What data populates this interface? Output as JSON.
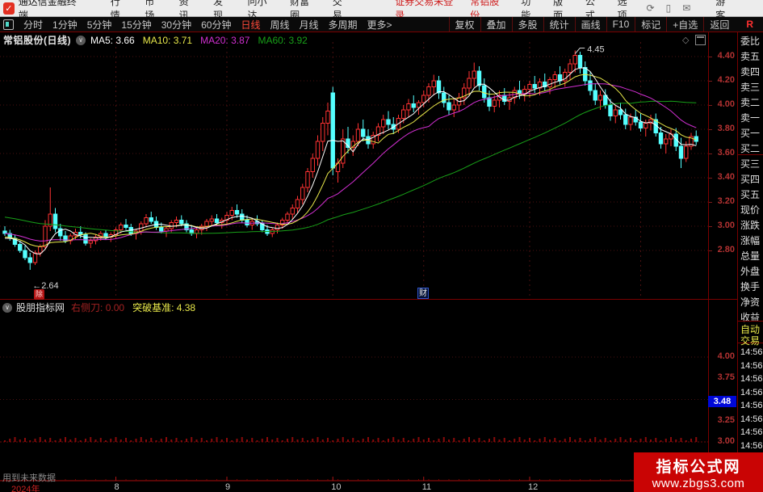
{
  "topbar": {
    "app_title": "通达信金融终端",
    "menus": [
      "行情",
      "市场",
      "资讯",
      "发现",
      "问小达",
      "财富圈",
      "交易"
    ],
    "alerts": [
      "证券交易未登录",
      "常铝股份"
    ],
    "menus_right": [
      "功能",
      "版面",
      "公式",
      "选项"
    ],
    "icons": [
      "refresh",
      "mobile",
      "mail"
    ],
    "user": "游客"
  },
  "toolbar": {
    "periods": [
      "分时",
      "1分钟",
      "5分钟",
      "15分钟",
      "30分钟",
      "60分钟",
      "日线",
      "周线",
      "月线",
      "多周期",
      "更多>"
    ],
    "active_period": "日线",
    "actions": [
      "复权",
      "叠加",
      "多股",
      "统计",
      "画线",
      "F10",
      "标记",
      "+自选",
      "返回"
    ],
    "r_flag": "R"
  },
  "chart_header": {
    "title": "常铝股份(日线)",
    "ma5": "MA5: 3.66",
    "ma10": "MA10: 3.71",
    "ma20": "MA20: 3.87",
    "ma60": "MA60: 3.92",
    "diamond": "◇"
  },
  "indicator": {
    "name": "股朋指标网",
    "field1_label": "右侧刀:",
    "field1_value": "0.00",
    "field2_label": "突破基准:",
    "field2_value": "4.38",
    "tag_value": "3.48",
    "scale": [
      "4.00",
      "3.75",
      "3.25",
      "3.00"
    ]
  },
  "main_scale": [
    "4.40",
    "4.20",
    "4.00",
    "3.80",
    "3.60",
    "3.40",
    "3.20",
    "3.00",
    "2.80"
  ],
  "right_panel": {
    "rows": [
      "委比",
      "卖五",
      "卖四",
      "卖三",
      "卖二",
      "卖一",
      "买一",
      "买二",
      "买三",
      "买四",
      "买五",
      "现价",
      "涨跌",
      "涨幅",
      "总量",
      "外盘",
      "换手",
      "净资",
      "收益"
    ],
    "auto_rows": [
      "自动",
      "交易"
    ],
    "times": [
      "14:56",
      "14:56",
      "14:56",
      "14:56",
      "14:56",
      "14:56",
      "14:56",
      "14:56"
    ]
  },
  "bottom": {
    "future_note": "用到未来数据",
    "year_label": "2024年",
    "month_labels": [
      "8",
      "9",
      "10",
      "11",
      "12"
    ]
  },
  "watermark": {
    "line1": "指标公式网",
    "line2": "www.zbgs3.com"
  },
  "annotations": {
    "low_text": "←2.64",
    "high_text": "4.45",
    "event_badge": "除",
    "report_badge": "财"
  },
  "chart_data": {
    "type": "candlestick",
    "title": "常铝股份(日线)",
    "y_axis_labels": [
      4.4,
      4.2,
      4.0,
      3.8,
      3.6,
      3.4,
      3.2,
      3.0,
      2.8
    ],
    "indicator_axis_labels": [
      4.0,
      3.75,
      3.25,
      3.0
    ],
    "indicator_current": 3.48,
    "low_annotation": {
      "index": 5,
      "value": 2.64
    },
    "high_annotation": {
      "index": 113,
      "value": 4.45
    },
    "month_start_indices": [
      22,
      44,
      65,
      83,
      104,
      126
    ],
    "axis_labels": [
      {
        "label": "2024年",
        "index": 0,
        "year": true
      },
      {
        "label": "8",
        "index": 22
      },
      {
        "label": "9",
        "index": 44
      },
      {
        "label": "10",
        "index": 65
      },
      {
        "label": "11",
        "index": 83
      },
      {
        "label": "12",
        "index": 104
      }
    ],
    "pre_close": {
      "start": 3.28,
      "end": 2.88,
      "count": 60
    },
    "colors": {
      "up": "#ff3232",
      "down": "#55ffff",
      "ma5": "#ffffff",
      "ma10": "#e8e84a",
      "ma20": "#d22fd2",
      "ma60": "#18a018",
      "grid": "#4a1010",
      "axis": "#aa0e0e",
      "hist": "#8a0a0a"
    },
    "candles": [
      [
        2.96,
        3.0,
        2.92,
        2.94
      ],
      [
        2.94,
        2.97,
        2.88,
        2.9
      ],
      [
        2.9,
        2.93,
        2.83,
        2.85
      ],
      [
        2.85,
        2.88,
        2.78,
        2.8
      ],
      [
        2.8,
        2.84,
        2.72,
        2.74
      ],
      [
        2.74,
        2.78,
        2.64,
        2.7
      ],
      [
        2.7,
        2.8,
        2.68,
        2.78
      ],
      [
        2.78,
        2.85,
        2.75,
        2.83
      ],
      [
        2.83,
        3.05,
        2.81,
        3.0
      ],
      [
        3.0,
        3.32,
        2.96,
        3.1
      ],
      [
        3.1,
        3.15,
        2.95,
        2.98
      ],
      [
        2.98,
        3.02,
        2.88,
        2.92
      ],
      [
        2.92,
        2.96,
        2.86,
        2.88
      ],
      [
        2.88,
        2.94,
        2.85,
        2.92
      ],
      [
        2.92,
        2.98,
        2.89,
        2.95
      ],
      [
        2.95,
        3.0,
        2.9,
        2.93
      ],
      [
        2.93,
        2.95,
        2.84,
        2.86
      ],
      [
        2.86,
        2.9,
        2.82,
        2.88
      ],
      [
        2.88,
        2.93,
        2.85,
        2.91
      ],
      [
        2.91,
        2.96,
        2.88,
        2.94
      ],
      [
        2.94,
        2.97,
        2.89,
        2.91
      ],
      [
        2.91,
        2.95,
        2.87,
        2.93
      ],
      [
        2.93,
        2.99,
        2.9,
        2.97
      ],
      [
        2.97,
        3.03,
        2.94,
        3.01
      ],
      [
        3.01,
        3.06,
        2.97,
        2.99
      ],
      [
        2.99,
        3.02,
        2.92,
        2.94
      ],
      [
        2.94,
        2.98,
        2.89,
        2.96
      ],
      [
        2.96,
        3.04,
        2.93,
        3.02
      ],
      [
        3.02,
        3.1,
        2.99,
        3.07
      ],
      [
        3.07,
        3.12,
        3.02,
        3.04
      ],
      [
        3.04,
        3.08,
        2.97,
        2.99
      ],
      [
        2.99,
        3.03,
        2.94,
        2.96
      ],
      [
        2.96,
        3.0,
        2.91,
        2.98
      ],
      [
        2.98,
        3.05,
        2.95,
        3.03
      ],
      [
        3.03,
        3.08,
        2.99,
        3.05
      ],
      [
        3.05,
        3.09,
        3.0,
        3.02
      ],
      [
        3.02,
        3.05,
        2.95,
        2.97
      ],
      [
        2.97,
        3.01,
        2.92,
        2.94
      ],
      [
        2.94,
        2.99,
        2.9,
        2.97
      ],
      [
        2.97,
        3.02,
        2.93,
        3.0
      ],
      [
        3.0,
        3.06,
        2.96,
        3.04
      ],
      [
        3.04,
        3.09,
        3.0,
        3.06
      ],
      [
        3.06,
        3.1,
        3.01,
        3.03
      ],
      [
        3.03,
        3.07,
        2.98,
        3.05
      ],
      [
        3.05,
        3.12,
        3.01,
        3.09
      ],
      [
        3.09,
        3.16,
        3.05,
        3.13
      ],
      [
        3.13,
        3.18,
        3.07,
        3.1
      ],
      [
        3.1,
        3.14,
        3.03,
        3.05
      ],
      [
        3.05,
        3.09,
        2.99,
        3.01
      ],
      [
        3.01,
        3.06,
        2.97,
        3.04
      ],
      [
        3.04,
        3.09,
        3.0,
        3.02
      ],
      [
        3.02,
        3.05,
        2.95,
        2.97
      ],
      [
        2.97,
        3.01,
        2.92,
        2.94
      ],
      [
        2.94,
        2.99,
        2.91,
        2.97
      ],
      [
        2.97,
        3.03,
        2.94,
        3.01
      ],
      [
        3.01,
        3.07,
        2.98,
        3.05
      ],
      [
        3.05,
        3.12,
        3.02,
        3.1
      ],
      [
        3.1,
        3.18,
        3.06,
        3.15
      ],
      [
        3.15,
        3.25,
        3.11,
        3.22
      ],
      [
        3.22,
        3.35,
        3.18,
        3.32
      ],
      [
        3.32,
        3.48,
        3.28,
        3.45
      ],
      [
        3.45,
        3.6,
        3.4,
        3.56
      ],
      [
        3.56,
        3.75,
        3.5,
        3.7
      ],
      [
        3.7,
        3.9,
        3.62,
        3.85
      ],
      [
        3.85,
        4.02,
        3.75,
        3.95
      ],
      [
        4.1,
        4.15,
        3.42,
        3.48
      ],
      [
        3.45,
        3.56,
        3.36,
        3.52
      ],
      [
        3.52,
        3.8,
        3.48,
        3.72
      ],
      [
        3.72,
        3.82,
        3.6,
        3.65
      ],
      [
        3.65,
        3.75,
        3.58,
        3.7
      ],
      [
        3.7,
        3.85,
        3.66,
        3.8
      ],
      [
        3.8,
        3.88,
        3.7,
        3.74
      ],
      [
        3.74,
        3.8,
        3.64,
        3.68
      ],
      [
        3.68,
        3.78,
        3.64,
        3.75
      ],
      [
        3.75,
        3.85,
        3.7,
        3.82
      ],
      [
        3.82,
        3.92,
        3.76,
        3.88
      ],
      [
        3.88,
        3.95,
        3.8,
        3.84
      ],
      [
        3.84,
        3.9,
        3.76,
        3.8
      ],
      [
        3.8,
        3.92,
        3.77,
        3.89
      ],
      [
        3.89,
        4.0,
        3.85,
        3.96
      ],
      [
        3.96,
        4.05,
        3.9,
        4.01
      ],
      [
        4.01,
        4.08,
        3.94,
        3.98
      ],
      [
        3.98,
        4.04,
        3.92,
        4.02
      ],
      [
        4.02,
        4.12,
        3.98,
        4.08
      ],
      [
        4.08,
        4.18,
        4.02,
        4.15
      ],
      [
        4.15,
        4.25,
        4.08,
        4.2
      ],
      [
        4.2,
        4.24,
        4.05,
        4.1
      ],
      [
        4.1,
        4.15,
        3.98,
        4.02
      ],
      [
        4.02,
        4.08,
        3.92,
        3.96
      ],
      [
        3.96,
        4.05,
        3.9,
        4.0
      ],
      [
        4.0,
        4.1,
        3.95,
        4.06
      ],
      [
        4.06,
        4.18,
        4.0,
        4.14
      ],
      [
        4.14,
        4.28,
        4.08,
        4.22
      ],
      [
        4.22,
        4.35,
        4.15,
        4.28
      ],
      [
        4.28,
        4.32,
        4.12,
        4.16
      ],
      [
        4.16,
        4.22,
        4.02,
        4.06
      ],
      [
        4.06,
        4.12,
        3.95,
        3.99
      ],
      [
        3.99,
        4.08,
        3.94,
        4.04
      ],
      [
        4.04,
        4.12,
        3.98,
        4.08
      ],
      [
        4.08,
        4.14,
        4.0,
        4.03
      ],
      [
        4.03,
        4.1,
        3.96,
        4.06
      ],
      [
        4.06,
        4.15,
        4.01,
        4.12
      ],
      [
        4.12,
        4.2,
        4.05,
        4.09
      ],
      [
        4.09,
        4.16,
        4.03,
        4.13
      ],
      [
        4.13,
        4.2,
        4.06,
        4.17
      ],
      [
        4.17,
        4.24,
        4.1,
        4.14
      ],
      [
        4.14,
        4.22,
        4.08,
        4.19
      ],
      [
        4.19,
        4.26,
        4.12,
        4.15
      ],
      [
        4.15,
        4.23,
        4.09,
        4.21
      ],
      [
        4.21,
        4.28,
        4.14,
        4.25
      ],
      [
        4.25,
        4.32,
        4.17,
        4.2
      ],
      [
        4.2,
        4.3,
        4.15,
        4.27
      ],
      [
        4.27,
        4.38,
        4.21,
        4.34
      ],
      [
        4.34,
        4.45,
        4.27,
        4.41
      ],
      [
        4.41,
        4.44,
        4.26,
        4.31
      ],
      [
        4.31,
        4.36,
        4.16,
        4.2
      ],
      [
        4.2,
        4.27,
        4.08,
        4.12
      ],
      [
        4.12,
        4.18,
        4.0,
        4.04
      ],
      [
        4.04,
        4.12,
        3.96,
        4.08
      ],
      [
        4.08,
        4.13,
        3.97,
        4.0
      ],
      [
        4.0,
        4.05,
        3.87,
        3.91
      ],
      [
        3.91,
        4.0,
        3.85,
        3.96
      ],
      [
        3.96,
        4.02,
        3.88,
        3.92
      ],
      [
        3.92,
        3.97,
        3.8,
        3.84
      ],
      [
        3.84,
        3.93,
        3.79,
        3.9
      ],
      [
        3.9,
        3.96,
        3.83,
        3.86
      ],
      [
        3.86,
        3.93,
        3.78,
        3.81
      ],
      [
        3.81,
        3.88,
        3.74,
        3.85
      ],
      [
        3.85,
        3.92,
        3.79,
        3.88
      ],
      [
        3.88,
        3.93,
        3.74,
        3.77
      ],
      [
        3.77,
        3.82,
        3.64,
        3.68
      ],
      [
        3.68,
        3.76,
        3.6,
        3.72
      ],
      [
        3.72,
        3.8,
        3.66,
        3.76
      ],
      [
        3.76,
        3.81,
        3.62,
        3.66
      ],
      [
        3.66,
        3.73,
        3.48,
        3.56
      ],
      [
        3.56,
        3.7,
        3.53,
        3.66
      ],
      [
        3.66,
        3.77,
        3.63,
        3.74
      ],
      [
        3.74,
        3.79,
        3.67,
        3.7
      ]
    ]
  }
}
